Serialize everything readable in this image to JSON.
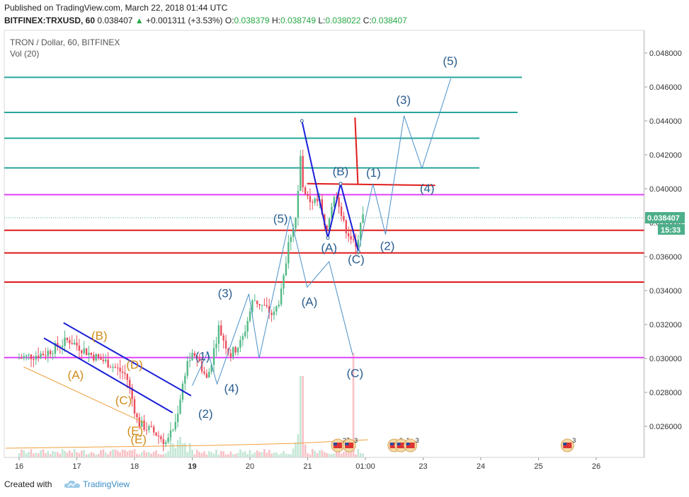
{
  "header": {
    "published": "Published on TradingView.com, March 22, 2018 01:44 UTC",
    "symbol": "BITFINEX:TRXUSD, 60",
    "last": "0.038407",
    "change_arrow": "▲",
    "change": "+0.001311 (+3.53%)",
    "o_label": "O:",
    "o": "0.038379",
    "h_label": "H:",
    "h": "0.038749",
    "l_label": "L:",
    "l": "0.038022",
    "c_label": "C:",
    "c": "0.038407"
  },
  "legend": {
    "title": "TRON / Dollar, 60, BITFINEX",
    "volume": "Vol (20)"
  },
  "footer": {
    "created": "Created with",
    "brand": "TradingView"
  },
  "colors": {
    "teal_lines": "#26a69a",
    "red_lines": "#e01b1b",
    "magenta_lines": "#e040fb",
    "wave_path": "#4a90c9",
    "wave_label_blue": "#2a5d8f",
    "wave_label_orange": "#d08c1a",
    "channel": "#1a1fd6",
    "candle_up": "#53b987",
    "candle_down": "#eb4d5c",
    "last_price_badge": "#4caf8a"
  },
  "chart_data": {
    "type": "candlestick",
    "y_axis": {
      "range": [
        0.0245,
        0.0495
      ],
      "ticks": [
        "0.026000",
        "0.028000",
        "0.030000",
        "0.032000",
        "0.034000",
        "0.036000",
        "0.038000",
        "0.040000",
        "0.042000",
        "0.044000",
        "0.046000",
        "0.048000"
      ]
    },
    "x_axis": {
      "ticks": [
        "16",
        "17",
        "18",
        "19",
        "20",
        "21",
        "01:00",
        "23",
        "24",
        "25",
        "26"
      ]
    },
    "last_price_label": "0.038407",
    "countdown_label": "15:33",
    "horizontal_levels": [
      {
        "color": "teal",
        "price": 0.04657
      },
      {
        "color": "teal",
        "price": 0.0445
      },
      {
        "color": "teal",
        "price": 0.04298
      },
      {
        "color": "teal",
        "price": 0.04123
      },
      {
        "color": "magenta",
        "price": 0.03965
      },
      {
        "color": "red",
        "price": 0.03755
      },
      {
        "color": "red",
        "price": 0.03622
      },
      {
        "color": "red",
        "price": 0.0345
      },
      {
        "color": "magenta",
        "price": 0.03005
      }
    ],
    "trend_lines": [
      {
        "color": "red",
        "from": [
          20.99,
          0.0403
        ],
        "to": [
          23.21,
          0.0402
        ]
      },
      {
        "color": "red",
        "from": [
          21.82,
          0.0442
        ],
        "to": [
          21.87,
          0.0403
        ]
      },
      {
        "color": "blue",
        "from": [
          16.43,
          0.0312
        ],
        "to": [
          18.66,
          0.0268
        ]
      },
      {
        "color": "blue",
        "from": [
          16.77,
          0.0321
        ],
        "to": [
          18.98,
          0.0278
        ]
      },
      {
        "color": "blue",
        "from": [
          20.9,
          0.044
        ],
        "to": [
          21.35,
          0.0371
        ]
      },
      {
        "color": "blue",
        "from": [
          21.35,
          0.0371
        ],
        "to": [
          21.57,
          0.0403
        ]
      },
      {
        "color": "blue",
        "from": [
          21.57,
          0.0403
        ],
        "to": [
          21.88,
          0.0363
        ]
      },
      {
        "color": "orange",
        "from": [
          16.08,
          0.0295
        ],
        "to": [
          18.17,
          0.0262
        ]
      }
    ],
    "wave_paths": [
      [
        [
          19.0,
          0.0284
        ],
        [
          19.27,
          0.0304
        ],
        [
          19.43,
          0.0285
        ],
        [
          19.98,
          0.0338
        ],
        [
          20.16,
          0.03
        ],
        [
          20.7,
          0.0384
        ]
      ],
      [
        [
          20.7,
          0.0384
        ],
        [
          20.99,
          0.0342
        ],
        [
          21.37,
          0.0357
        ],
        [
          21.78,
          0.0302
        ]
      ],
      [
        [
          21.88,
          0.0363
        ],
        [
          22.13,
          0.0403
        ],
        [
          22.35,
          0.0373
        ],
        [
          22.67,
          0.0443
        ],
        [
          22.98,
          0.0412
        ],
        [
          23.48,
          0.0465
        ]
      ]
    ],
    "wave_labels": [
      {
        "text": "(1)",
        "x": 19.18,
        "y": 0.0299,
        "color": "blue"
      },
      {
        "text": "(2)",
        "x": 19.23,
        "y": 0.0265,
        "color": "blue"
      },
      {
        "text": "(3)",
        "x": 19.57,
        "y": 0.0336,
        "color": "blue"
      },
      {
        "text": "(4)",
        "x": 19.68,
        "y": 0.028,
        "color": "blue"
      },
      {
        "text": "(5)",
        "x": 20.53,
        "y": 0.038,
        "color": "blue"
      },
      {
        "text": "(A)",
        "x": 21.03,
        "y": 0.0331,
        "color": "blue"
      },
      {
        "text": "(A)",
        "x": 21.37,
        "y": 0.0363,
        "color": "blue"
      },
      {
        "text": "(B)",
        "x": 21.57,
        "y": 0.0408,
        "color": "blue"
      },
      {
        "text": "(C)",
        "x": 21.84,
        "y": 0.0356,
        "color": "blue"
      },
      {
        "text": "(C)",
        "x": 21.82,
        "y": 0.0289,
        "color": "blue"
      },
      {
        "text": "(1)",
        "x": 22.14,
        "y": 0.0407,
        "color": "blue"
      },
      {
        "text": "(2)",
        "x": 22.38,
        "y": 0.0364,
        "color": "blue"
      },
      {
        "text": "(4)",
        "x": 23.07,
        "y": 0.0398,
        "color": "blue"
      },
      {
        "text": "(3)",
        "x": 22.66,
        "y": 0.045,
        "color": "blue"
      },
      {
        "text": "(5)",
        "x": 23.47,
        "y": 0.0473,
        "color": "blue"
      },
      {
        "text": "(B)",
        "x": 17.39,
        "y": 0.0311,
        "color": "orange"
      },
      {
        "text": "(A)",
        "x": 16.98,
        "y": 0.0288,
        "color": "orange"
      },
      {
        "text": "(D)",
        "x": 18.0,
        "y": 0.0294,
        "color": "orange"
      },
      {
        "text": "(C)",
        "x": 17.81,
        "y": 0.0273,
        "color": "orange"
      },
      {
        "text": "(E)",
        "x": 18.01,
        "y": 0.0255,
        "color": "orange"
      },
      {
        "text": "(E)",
        "x": 18.07,
        "y": 0.025,
        "color": "orange"
      }
    ],
    "events": [
      {
        "x": 21.52,
        "count": "27"
      },
      {
        "x": 21.72,
        "count": "3"
      },
      {
        "x": 22.5,
        "count": "6"
      },
      {
        "x": 22.62,
        "count": "1"
      },
      {
        "x": 22.78,
        "count": "3"
      },
      {
        "x": 25.5,
        "count": "3"
      }
    ]
  }
}
